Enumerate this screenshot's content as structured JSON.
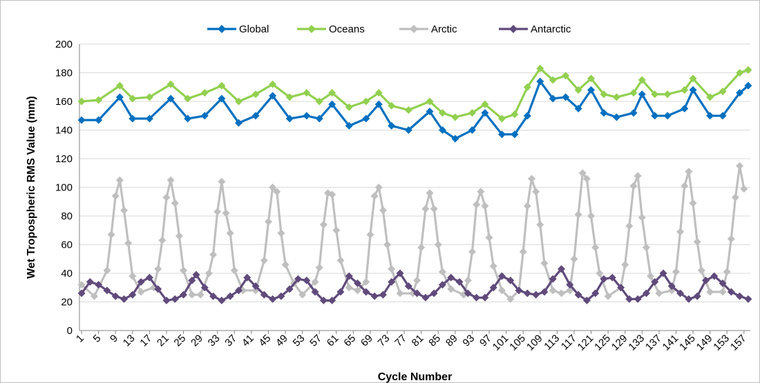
{
  "chart_data": {
    "type": "line",
    "xlabel": "Cycle Number",
    "ylabel": "Wet Tropospheric RMS Value (mm)",
    "ylim": [
      0,
      200
    ],
    "yticks": [
      0,
      20,
      40,
      60,
      80,
      100,
      120,
      140,
      160,
      180,
      200
    ],
    "xlim": [
      1,
      158
    ],
    "xticks": [
      1,
      5,
      9,
      13,
      17,
      21,
      25,
      29,
      33,
      37,
      41,
      45,
      49,
      53,
      57,
      61,
      65,
      69,
      73,
      77,
      81,
      85,
      89,
      93,
      97,
      101,
      105,
      109,
      113,
      117,
      121,
      125,
      129,
      133,
      137,
      141,
      145,
      149,
      153,
      157
    ],
    "legend_position": "top",
    "grid": "horizontal",
    "series": [
      {
        "name": "Global",
        "color": "#0070c0",
        "marker": "diamond",
        "points": [
          [
            1,
            147
          ],
          [
            5,
            147
          ],
          [
            10,
            163
          ],
          [
            13,
            148
          ],
          [
            17,
            148
          ],
          [
            22,
            162
          ],
          [
            26,
            148
          ],
          [
            30,
            150
          ],
          [
            34,
            162
          ],
          [
            38,
            145
          ],
          [
            42,
            150
          ],
          [
            46,
            164
          ],
          [
            50,
            148
          ],
          [
            54,
            150
          ],
          [
            57,
            148
          ],
          [
            60,
            158
          ],
          [
            64,
            143
          ],
          [
            68,
            148
          ],
          [
            71,
            158
          ],
          [
            74,
            143
          ],
          [
            78,
            140
          ],
          [
            83,
            153
          ],
          [
            86,
            140
          ],
          [
            89,
            134
          ],
          [
            93,
            140
          ],
          [
            96,
            152
          ],
          [
            100,
            137
          ],
          [
            103,
            137
          ],
          [
            106,
            150
          ],
          [
            109,
            174
          ],
          [
            112,
            162
          ],
          [
            115,
            163
          ],
          [
            118,
            155
          ],
          [
            121,
            168
          ],
          [
            124,
            152
          ],
          [
            127,
            149
          ],
          [
            131,
            152
          ],
          [
            133,
            165
          ],
          [
            136,
            150
          ],
          [
            139,
            150
          ],
          [
            143,
            155
          ],
          [
            145,
            168
          ],
          [
            149,
            150
          ],
          [
            152,
            150
          ],
          [
            156,
            166
          ],
          [
            158,
            171
          ]
        ]
      },
      {
        "name": "Oceans",
        "color": "#92d050",
        "marker": "diamond",
        "points": [
          [
            1,
            160
          ],
          [
            5,
            161
          ],
          [
            10,
            171
          ],
          [
            13,
            162
          ],
          [
            17,
            163
          ],
          [
            22,
            172
          ],
          [
            26,
            162
          ],
          [
            30,
            166
          ],
          [
            34,
            171
          ],
          [
            38,
            160
          ],
          [
            42,
            165
          ],
          [
            46,
            172
          ],
          [
            50,
            163
          ],
          [
            54,
            166
          ],
          [
            57,
            160
          ],
          [
            60,
            166
          ],
          [
            64,
            156
          ],
          [
            68,
            160
          ],
          [
            71,
            166
          ],
          [
            74,
            157
          ],
          [
            78,
            154
          ],
          [
            83,
            160
          ],
          [
            86,
            152
          ],
          [
            89,
            149
          ],
          [
            93,
            152
          ],
          [
            96,
            158
          ],
          [
            100,
            148
          ],
          [
            103,
            151
          ],
          [
            106,
            170
          ],
          [
            109,
            183
          ],
          [
            112,
            175
          ],
          [
            115,
            178
          ],
          [
            118,
            168
          ],
          [
            121,
            176
          ],
          [
            124,
            165
          ],
          [
            127,
            163
          ],
          [
            131,
            166
          ],
          [
            133,
            175
          ],
          [
            136,
            165
          ],
          [
            139,
            165
          ],
          [
            143,
            168
          ],
          [
            145,
            176
          ],
          [
            149,
            163
          ],
          [
            152,
            167
          ],
          [
            156,
            180
          ],
          [
            158,
            182
          ]
        ]
      },
      {
        "name": "Arctic",
        "color": "#bfbfbf",
        "marker": "diamond",
        "points": [
          [
            1,
            32
          ],
          [
            4,
            24
          ],
          [
            7,
            42
          ],
          [
            8,
            67
          ],
          [
            9,
            94
          ],
          [
            10,
            105
          ],
          [
            11,
            84
          ],
          [
            12,
            61
          ],
          [
            13,
            38
          ],
          [
            15,
            27
          ],
          [
            18,
            30
          ],
          [
            19,
            43
          ],
          [
            20,
            63
          ],
          [
            21,
            93
          ],
          [
            22,
            105
          ],
          [
            23,
            89
          ],
          [
            24,
            66
          ],
          [
            25,
            42
          ],
          [
            27,
            25
          ],
          [
            29,
            25
          ],
          [
            31,
            40
          ],
          [
            32,
            53
          ],
          [
            33,
            83
          ],
          [
            34,
            104
          ],
          [
            35,
            82
          ],
          [
            36,
            68
          ],
          [
            37,
            42
          ],
          [
            39,
            28
          ],
          [
            42,
            28
          ],
          [
            44,
            49
          ],
          [
            45,
            76
          ],
          [
            46,
            100
          ],
          [
            47,
            97
          ],
          [
            48,
            68
          ],
          [
            49,
            46
          ],
          [
            51,
            33
          ],
          [
            53,
            25
          ],
          [
            56,
            34
          ],
          [
            57,
            44
          ],
          [
            58,
            74
          ],
          [
            59,
            96
          ],
          [
            60,
            95
          ],
          [
            61,
            70
          ],
          [
            62,
            49
          ],
          [
            64,
            30
          ],
          [
            66,
            28
          ],
          [
            68,
            34
          ],
          [
            69,
            67
          ],
          [
            70,
            94
          ],
          [
            71,
            100
          ],
          [
            72,
            84
          ],
          [
            73,
            60
          ],
          [
            74,
            43
          ],
          [
            76,
            26
          ],
          [
            79,
            26
          ],
          [
            80,
            35
          ],
          [
            81,
            58
          ],
          [
            82,
            85
          ],
          [
            83,
            96
          ],
          [
            84,
            85
          ],
          [
            85,
            60
          ],
          [
            86,
            41
          ],
          [
            88,
            29
          ],
          [
            91,
            25
          ],
          [
            92,
            35
          ],
          [
            93,
            55
          ],
          [
            94,
            88
          ],
          [
            95,
            97
          ],
          [
            96,
            87
          ],
          [
            97,
            65
          ],
          [
            98,
            45
          ],
          [
            100,
            28
          ],
          [
            102,
            22
          ],
          [
            104,
            28
          ],
          [
            105,
            55
          ],
          [
            106,
            87
          ],
          [
            107,
            106
          ],
          [
            108,
            97
          ],
          [
            109,
            74
          ],
          [
            110,
            47
          ],
          [
            112,
            28
          ],
          [
            114,
            26
          ],
          [
            116,
            28
          ],
          [
            117,
            50
          ],
          [
            118,
            81
          ],
          [
            119,
            110
          ],
          [
            120,
            106
          ],
          [
            121,
            80
          ],
          [
            122,
            58
          ],
          [
            123,
            40
          ],
          [
            125,
            24
          ],
          [
            128,
            30
          ],
          [
            129,
            46
          ],
          [
            130,
            73
          ],
          [
            131,
            101
          ],
          [
            132,
            108
          ],
          [
            133,
            79
          ],
          [
            134,
            58
          ],
          [
            135,
            38
          ],
          [
            137,
            26
          ],
          [
            140,
            28
          ],
          [
            141,
            41
          ],
          [
            142,
            69
          ],
          [
            143,
            101
          ],
          [
            144,
            111
          ],
          [
            145,
            89
          ],
          [
            146,
            62
          ],
          [
            147,
            42
          ],
          [
            149,
            27
          ],
          [
            152,
            27
          ],
          [
            153,
            41
          ],
          [
            154,
            64
          ],
          [
            155,
            93
          ],
          [
            156,
            115
          ],
          [
            157,
            99
          ]
        ]
      },
      {
        "name": "Antarctic",
        "color": "#604a7b",
        "marker": "diamond",
        "points": [
          [
            1,
            26
          ],
          [
            3,
            34
          ],
          [
            5,
            32
          ],
          [
            7,
            28
          ],
          [
            9,
            24
          ],
          [
            11,
            22
          ],
          [
            13,
            25
          ],
          [
            15,
            34
          ],
          [
            17,
            37
          ],
          [
            19,
            29
          ],
          [
            21,
            21
          ],
          [
            23,
            22
          ],
          [
            25,
            25
          ],
          [
            27,
            35
          ],
          [
            28,
            39
          ],
          [
            30,
            30
          ],
          [
            32,
            24
          ],
          [
            34,
            21
          ],
          [
            36,
            24
          ],
          [
            38,
            28
          ],
          [
            40,
            37
          ],
          [
            42,
            31
          ],
          [
            44,
            25
          ],
          [
            46,
            22
          ],
          [
            48,
            24
          ],
          [
            50,
            29
          ],
          [
            52,
            36
          ],
          [
            54,
            35
          ],
          [
            56,
            27
          ],
          [
            58,
            21
          ],
          [
            60,
            21
          ],
          [
            62,
            27
          ],
          [
            64,
            38
          ],
          [
            66,
            33
          ],
          [
            68,
            27
          ],
          [
            70,
            24
          ],
          [
            72,
            25
          ],
          [
            74,
            34
          ],
          [
            76,
            40
          ],
          [
            78,
            31
          ],
          [
            80,
            26
          ],
          [
            82,
            23
          ],
          [
            84,
            26
          ],
          [
            86,
            32
          ],
          [
            88,
            37
          ],
          [
            90,
            34
          ],
          [
            92,
            26
          ],
          [
            94,
            23
          ],
          [
            96,
            23
          ],
          [
            98,
            30
          ],
          [
            100,
            38
          ],
          [
            102,
            35
          ],
          [
            104,
            28
          ],
          [
            106,
            26
          ],
          [
            108,
            25
          ],
          [
            110,
            27
          ],
          [
            112,
            36
          ],
          [
            114,
            43
          ],
          [
            116,
            32
          ],
          [
            118,
            25
          ],
          [
            120,
            21
          ],
          [
            122,
            26
          ],
          [
            124,
            36
          ],
          [
            126,
            37
          ],
          [
            128,
            30
          ],
          [
            130,
            22
          ],
          [
            132,
            22
          ],
          [
            134,
            26
          ],
          [
            136,
            34
          ],
          [
            138,
            40
          ],
          [
            140,
            31
          ],
          [
            142,
            26
          ],
          [
            144,
            22
          ],
          [
            146,
            24
          ],
          [
            148,
            35
          ],
          [
            150,
            38
          ],
          [
            152,
            33
          ],
          [
            154,
            27
          ],
          [
            156,
            24
          ],
          [
            158,
            22
          ]
        ]
      }
    ]
  }
}
